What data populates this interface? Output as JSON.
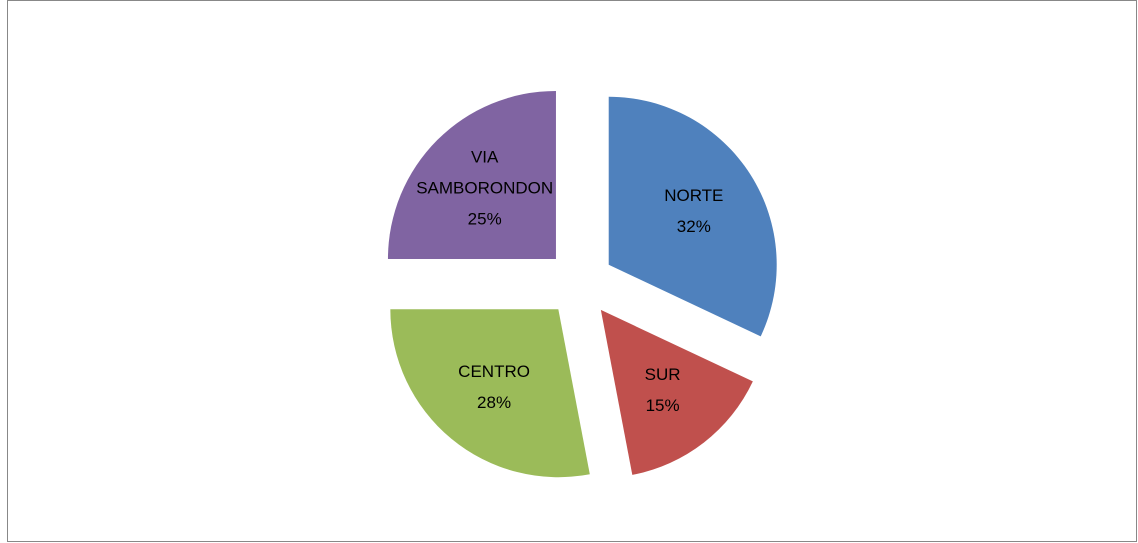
{
  "chart_data": {
    "type": "pie",
    "categories": [
      "NORTE",
      "SUR",
      "CENTRO",
      "VIA SAMBORONDON"
    ],
    "values": [
      32,
      15,
      28,
      25
    ],
    "value_labels": [
      "32%",
      "15%",
      "28%",
      "25%"
    ],
    "colors": [
      "#4f81bd",
      "#c0504d",
      "#9bbb59",
      "#8064a2"
    ],
    "exploded": true
  }
}
